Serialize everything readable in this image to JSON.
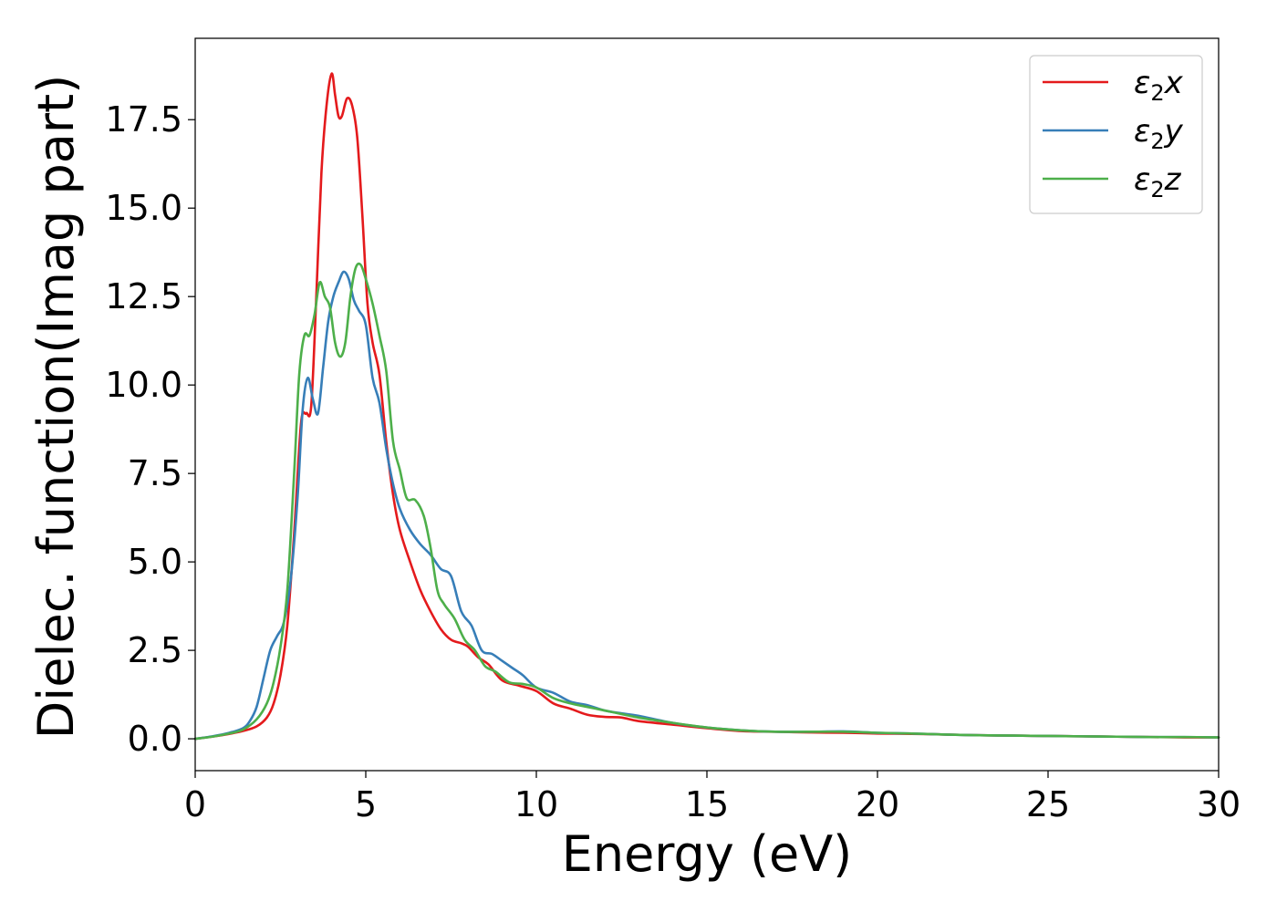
{
  "chart_data": {
    "type": "line",
    "title": "",
    "xlabel": "Energy (eV)",
    "ylabel": "Dielec. function(Imag part)",
    "xlim": [
      0,
      30
    ],
    "ylim": [
      -0.9,
      19.8
    ],
    "xticks": [
      0,
      5,
      10,
      15,
      20,
      25,
      30
    ],
    "xtick_labels": [
      "0",
      "5",
      "10",
      "15",
      "20",
      "25",
      "30"
    ],
    "yticks": [
      0.0,
      2.5,
      5.0,
      7.5,
      10.0,
      12.5,
      15.0,
      17.5
    ],
    "ytick_labels": [
      "0.0",
      "2.5",
      "5.0",
      "7.5",
      "10.0",
      "12.5",
      "15.0",
      "17.5"
    ],
    "grid": false,
    "legend_position": "top-right",
    "series": [
      {
        "name": "ε₂x",
        "legend_base": "ε",
        "legend_sub": "2",
        "legend_suffix": "x",
        "color": "#e41a1c",
        "x": [
          0,
          0.5,
          1.0,
          1.4,
          1.8,
          2.1,
          2.3,
          2.5,
          2.7,
          2.9,
          3.1,
          3.25,
          3.4,
          3.55,
          3.7,
          3.85,
          4.0,
          4.1,
          4.2,
          4.3,
          4.45,
          4.6,
          4.75,
          4.9,
          5.05,
          5.2,
          5.4,
          5.6,
          5.8,
          6.0,
          6.3,
          6.6,
          6.9,
          7.2,
          7.5,
          7.8,
          8.0,
          8.3,
          8.6,
          9.0,
          9.5,
          10.0,
          10.5,
          11.0,
          11.5,
          12.0,
          12.5,
          13.0,
          14.0,
          15.0,
          16.0,
          17.0,
          18.0,
          19.0,
          20.0,
          21.0,
          22.0,
          23.0,
          24.0,
          25.0,
          26.0,
          27.0,
          28.0,
          29.0,
          30.0
        ],
        "y": [
          0.0,
          0.06,
          0.14,
          0.22,
          0.35,
          0.6,
          1.0,
          1.8,
          3.2,
          5.8,
          8.9,
          9.2,
          9.4,
          12.5,
          16.0,
          17.9,
          18.8,
          18.2,
          17.6,
          17.6,
          18.1,
          17.9,
          17.0,
          14.8,
          12.3,
          11.2,
          10.3,
          8.4,
          6.9,
          5.9,
          5.0,
          4.2,
          3.6,
          3.1,
          2.8,
          2.7,
          2.6,
          2.3,
          2.1,
          1.65,
          1.5,
          1.35,
          1.0,
          0.85,
          0.68,
          0.62,
          0.6,
          0.5,
          0.4,
          0.3,
          0.22,
          0.2,
          0.18,
          0.17,
          0.15,
          0.14,
          0.12,
          0.1,
          0.09,
          0.08,
          0.07,
          0.06,
          0.05,
          0.04,
          0.04
        ]
      },
      {
        "name": "ε₂y",
        "legend_base": "ε",
        "legend_sub": "2",
        "legend_suffix": "y",
        "color": "#377eb8",
        "x": [
          0,
          0.5,
          1.0,
          1.4,
          1.6,
          1.8,
          2.0,
          2.2,
          2.4,
          2.6,
          2.8,
          3.0,
          3.15,
          3.3,
          3.45,
          3.6,
          3.75,
          3.9,
          4.05,
          4.2,
          4.35,
          4.5,
          4.65,
          4.8,
          5.0,
          5.2,
          5.4,
          5.6,
          5.8,
          6.0,
          6.3,
          6.6,
          6.9,
          7.2,
          7.5,
          7.8,
          8.1,
          8.4,
          8.7,
          9.0,
          9.3,
          9.6,
          10.0,
          10.5,
          11.0,
          11.5,
          12.0,
          12.5,
          13.0,
          14.0,
          15.0,
          16.0,
          17.0,
          18.0,
          19.0,
          20.0,
          21.0,
          22.0,
          23.0,
          24.0,
          25.0,
          26.0,
          27.0,
          28.0,
          29.0,
          30.0
        ],
        "y": [
          0.0,
          0.07,
          0.17,
          0.3,
          0.5,
          0.9,
          1.7,
          2.5,
          2.9,
          3.3,
          4.5,
          6.8,
          9.3,
          10.2,
          9.6,
          9.2,
          10.5,
          11.8,
          12.5,
          12.9,
          13.2,
          13.0,
          12.4,
          12.1,
          11.7,
          10.2,
          9.5,
          8.2,
          7.2,
          6.5,
          5.9,
          5.5,
          5.2,
          4.8,
          4.6,
          3.6,
          3.2,
          2.5,
          2.4,
          2.2,
          2.0,
          1.8,
          1.45,
          1.3,
          1.05,
          0.95,
          0.8,
          0.72,
          0.65,
          0.45,
          0.32,
          0.24,
          0.2,
          0.2,
          0.21,
          0.17,
          0.15,
          0.12,
          0.1,
          0.09,
          0.08,
          0.07,
          0.06,
          0.05,
          0.05,
          0.04
        ]
      },
      {
        "name": "ε₂z",
        "legend_base": "ε",
        "legend_sub": "2",
        "legend_suffix": "z",
        "color": "#4daf4a",
        "x": [
          0,
          0.5,
          1.0,
          1.4,
          1.8,
          2.1,
          2.3,
          2.5,
          2.7,
          2.9,
          3.05,
          3.2,
          3.35,
          3.5,
          3.65,
          3.8,
          3.95,
          4.1,
          4.25,
          4.4,
          4.55,
          4.7,
          4.85,
          5.0,
          5.2,
          5.4,
          5.6,
          5.8,
          6.0,
          6.2,
          6.45,
          6.7,
          6.9,
          7.1,
          7.3,
          7.6,
          7.9,
          8.2,
          8.5,
          8.8,
          9.2,
          9.6,
          10.0,
          10.5,
          11.0,
          11.5,
          12.0,
          12.5,
          13.0,
          14.0,
          15.0,
          16.0,
          17.0,
          18.0,
          19.0,
          20.0,
          21.0,
          22.0,
          23.0,
          24.0,
          25.0,
          26.0,
          27.0,
          28.0,
          29.0,
          30.0
        ],
        "y": [
          0.0,
          0.06,
          0.15,
          0.26,
          0.55,
          1.0,
          1.6,
          2.6,
          4.2,
          7.5,
          10.3,
          11.4,
          11.4,
          12.0,
          12.9,
          12.5,
          12.2,
          11.2,
          10.8,
          11.2,
          12.5,
          13.3,
          13.4,
          13.0,
          12.3,
          11.4,
          10.4,
          8.4,
          7.6,
          6.8,
          6.75,
          6.3,
          5.4,
          4.2,
          3.8,
          3.4,
          2.8,
          2.5,
          2.05,
          1.9,
          1.6,
          1.55,
          1.45,
          1.15,
          1.0,
          0.9,
          0.8,
          0.7,
          0.6,
          0.45,
          0.32,
          0.24,
          0.2,
          0.2,
          0.2,
          0.17,
          0.15,
          0.12,
          0.1,
          0.09,
          0.08,
          0.07,
          0.06,
          0.05,
          0.05,
          0.04
        ]
      }
    ]
  }
}
